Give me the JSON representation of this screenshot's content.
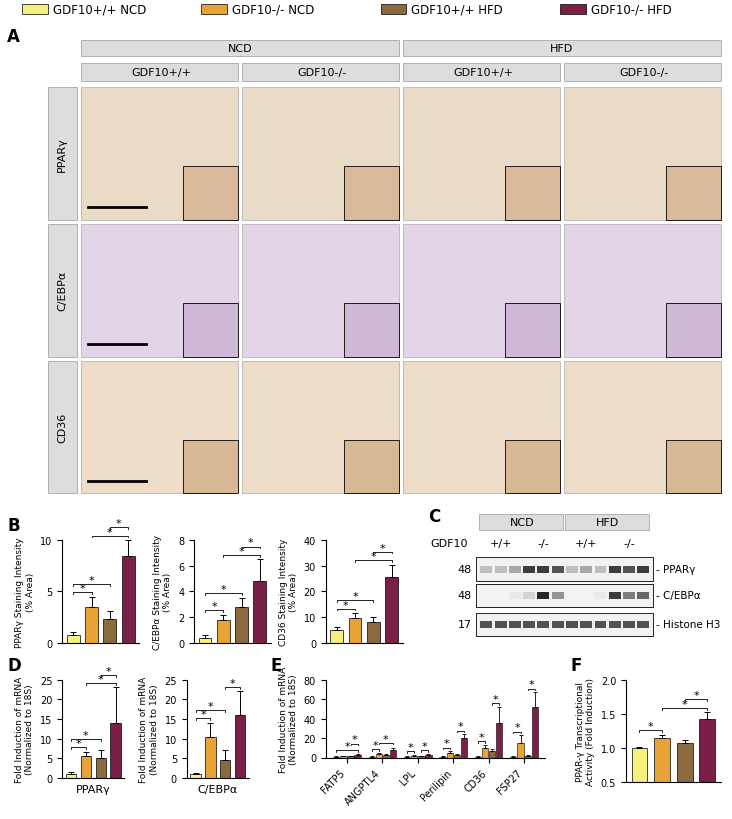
{
  "legend": [
    {
      "name": "GDF10+/+ NCD",
      "color": "#f6f07c"
    },
    {
      "name": "GDF10-/- NCD",
      "color": "#e8a236"
    },
    {
      "name": "GDF10+/+ HFD",
      "color": "#8a6a3e"
    },
    {
      "name": "GDF10-/- HFD",
      "color": "#7a1f47"
    }
  ],
  "panel_A": {
    "letter": "A",
    "diets": [
      "NCD",
      "HFD"
    ],
    "genotypes": [
      "GDF10+/+",
      "GDF10-/-",
      "GDF10+/+",
      "GDF10-/-"
    ],
    "rows": [
      "PPARγ",
      "C/EBPα",
      "CD36"
    ]
  },
  "panel_C": {
    "letter": "C",
    "diets": [
      "NCD",
      "HFD"
    ],
    "row_label": "GDF10",
    "genotypes": [
      "+/+",
      "-/-",
      "+/+",
      "-/-"
    ],
    "bands": [
      {
        "mw": "48",
        "label": "- PPARγ"
      },
      {
        "mw": "48",
        "label": "- C/EBPα"
      },
      {
        "mw": "17",
        "label": "- Histone H3"
      }
    ]
  },
  "chart_data": [
    {
      "type": "bar",
      "annotations": [
        "B"
      ],
      "ylabel": "PPARγ Staining Intensity\n(% Area)",
      "values": [
        0.8,
        3.5,
        2.3,
        8.5
      ],
      "errors": [
        0.2,
        1.0,
        0.8,
        1.5
      ],
      "ylim": [
        0,
        10
      ],
      "yticks": [
        0,
        5,
        10
      ],
      "tick_labels": "y",
      "significance": {
        "label": "*",
        "pairs": [
          [
            0,
            1
          ],
          [
            0,
            2
          ],
          [
            1,
            3
          ],
          [
            2,
            3
          ]
        ]
      }
    },
    {
      "type": "bar",
      "ylabel": "C/EBPα Staining Intensity\n(% Area)",
      "values": [
        0.4,
        1.8,
        2.8,
        4.8
      ],
      "errors": [
        0.2,
        0.4,
        0.7,
        1.7
      ],
      "ylim": [
        0,
        8
      ],
      "yticks": [
        0,
        2,
        4,
        6,
        8
      ],
      "tick_labels": "y",
      "significance": {
        "label": "*",
        "pairs": [
          [
            0,
            1
          ],
          [
            0,
            2
          ],
          [
            1,
            3
          ],
          [
            2,
            3
          ]
        ]
      }
    },
    {
      "type": "bar",
      "ylabel": "CD36 Staining Intensity\n(% Area)",
      "values": [
        5,
        9.5,
        8,
        25.5
      ],
      "errors": [
        1,
        2,
        2,
        5
      ],
      "ylim": [
        0,
        40
      ],
      "yticks": [
        0,
        10,
        20,
        30,
        40
      ],
      "tick_labels": "y",
      "significance": {
        "label": "*",
        "pairs": [
          [
            0,
            1
          ],
          [
            0,
            2
          ],
          [
            1,
            3
          ],
          [
            2,
            3
          ]
        ]
      }
    },
    {
      "type": "bar",
      "annotations": [
        "D"
      ],
      "ylabel": "Fold Induction of mRNA\n(Normalized to 18S)",
      "xlabel": "PPARγ",
      "values": [
        1,
        5.5,
        5,
        14
      ],
      "errors": [
        0.5,
        1.2,
        2,
        9
      ],
      "ylim": [
        0,
        25
      ],
      "yticks": [
        0,
        5,
        10,
        15,
        20,
        25
      ],
      "tick_labels": "y",
      "significance": {
        "label": "*",
        "pairs": [
          [
            0,
            1
          ],
          [
            0,
            2
          ],
          [
            1,
            3
          ],
          [
            2,
            3
          ]
        ]
      }
    },
    {
      "type": "bar",
      "ylabel": "Fold Induction of mRNA\n(Normalized to 18S)",
      "xlabel": "C/EBPα",
      "values": [
        1,
        10.5,
        4.5,
        16
      ],
      "errors": [
        0.2,
        3.5,
        2.5,
        6
      ],
      "ylim": [
        0,
        25
      ],
      "yticks": [
        0,
        5,
        10,
        15,
        20,
        25
      ],
      "tick_labels": "y",
      "significance": {
        "label": "*",
        "pairs": [
          [
            0,
            1
          ],
          [
            0,
            2
          ],
          [
            2,
            3
          ]
        ]
      }
    },
    {
      "type": "grouped_bar",
      "annotations": [
        "E"
      ],
      "ylabel": "Fold Induction of mRNA\n(Normalized to 18S)",
      "categories": [
        "FATP5",
        "ANGPTL4",
        "LPL",
        "Perilipin",
        "CD36",
        "FSP27"
      ],
      "series": [
        {
          "values": [
            1,
            1,
            1,
            1,
            1,
            1
          ],
          "errors": [
            0.2,
            0.2,
            0.2,
            0.2,
            0.3,
            0.3
          ]
        },
        {
          "values": [
            1.5,
            4,
            2,
            5,
            10,
            15
          ],
          "errors": [
            0.5,
            1,
            0.6,
            1.5,
            3,
            8
          ]
        },
        {
          "values": [
            1.2,
            3,
            1.5,
            3,
            7,
            2
          ],
          "errors": [
            0.4,
            1,
            0.5,
            1,
            2,
            1
          ]
        },
        {
          "values": [
            3,
            8,
            3,
            20,
            35,
            52
          ],
          "errors": [
            1,
            2,
            1,
            4,
            17,
            15
          ]
        }
      ],
      "ylim": [
        0,
        80
      ],
      "yticks": [
        0,
        20,
        40,
        60,
        80
      ],
      "significance": {
        "label": "*",
        "pairs": [
          [
            [
              0,
              3
            ],
            [
              2,
              3
            ]
          ],
          [
            [
              0,
              1
            ],
            [
              1,
              3
            ]
          ],
          [
            [
              0,
              1
            ],
            [
              2,
              3
            ]
          ],
          [
            [
              0,
              1
            ],
            [
              2,
              3
            ]
          ],
          [
            [
              0,
              1
            ],
            [
              2,
              3
            ]
          ],
          [
            [
              0,
              1
            ],
            [
              2,
              3
            ]
          ]
        ]
      }
    },
    {
      "type": "bar",
      "annotations": [
        "F"
      ],
      "ylabel": "PPAR-γ Transcriptional\nActivity (Fold Induction)",
      "values": [
        1.0,
        1.15,
        1.07,
        1.42
      ],
      "errors": [
        0.02,
        0.04,
        0.04,
        0.1
      ],
      "ylim": [
        0.5,
        2.0
      ],
      "yticks": [
        {
          "value": 0.5,
          "label": "0.5"
        },
        {
          "value": 1.0,
          "label": "1.0"
        },
        {
          "value": 1.5,
          "label": "1.5"
        },
        {
          "value": 2.0,
          "label": "2.0"
        }
      ],
      "tick_labels": "y",
      "significance": {
        "label": "*",
        "pairs": [
          [
            0,
            1
          ],
          [
            1,
            3
          ],
          [
            2,
            3
          ]
        ]
      }
    }
  ]
}
